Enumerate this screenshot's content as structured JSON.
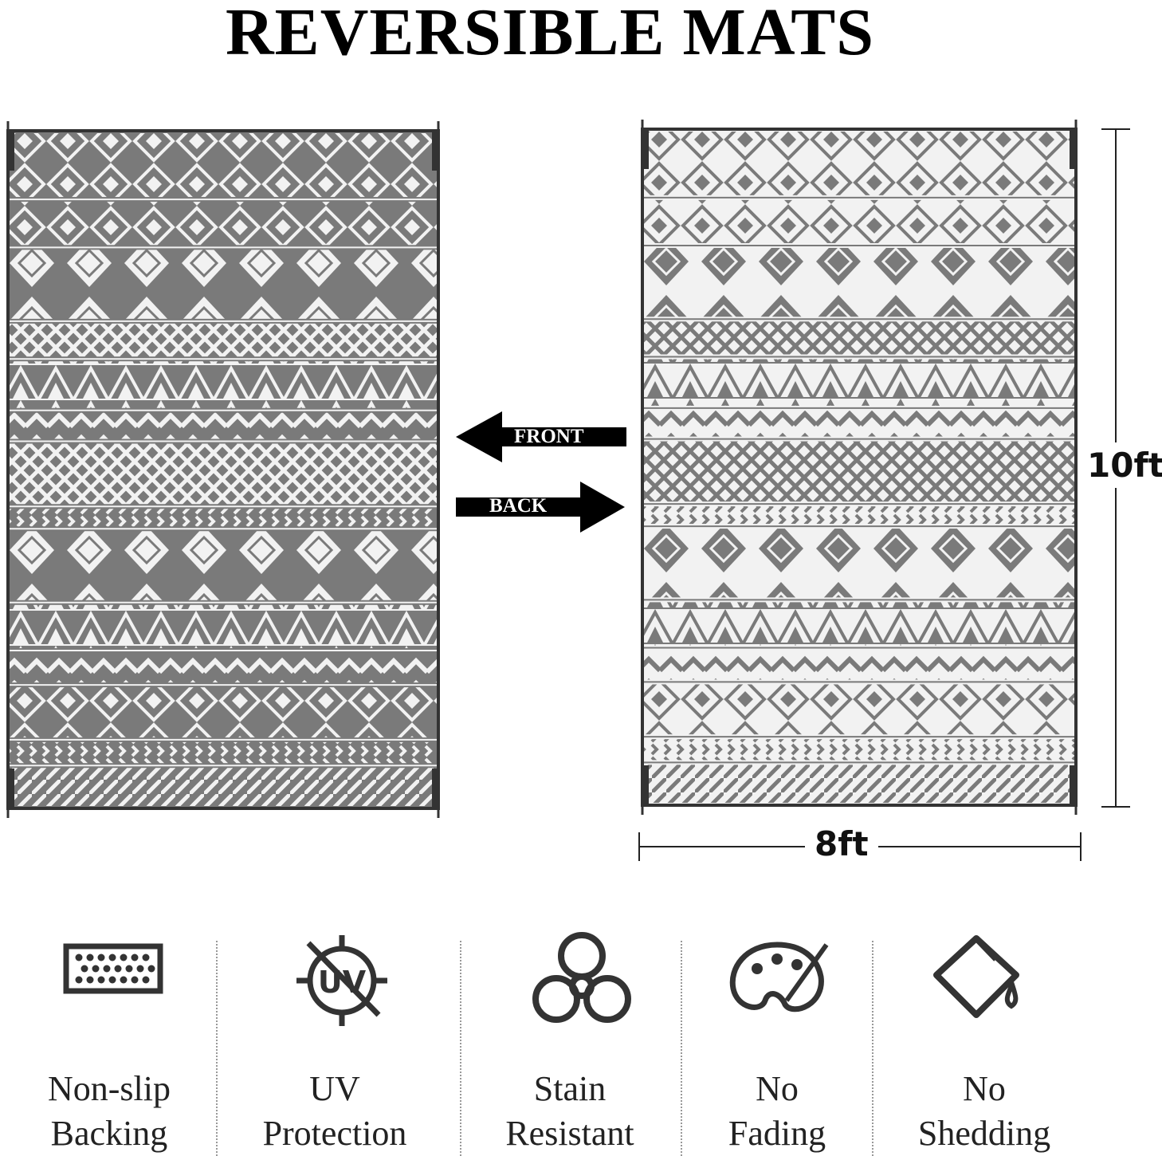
{
  "title": "REVERSIBLE MATS",
  "arrows": {
    "front": "FRONT",
    "back": "BACK"
  },
  "dimensions": {
    "height": "10ft",
    "width": "8ft"
  },
  "colors": {
    "mat_gray": "#7a7a7a",
    "mat_white": "#f2f2f2",
    "frame": "#333333"
  },
  "features": [
    {
      "icon": "non-slip-backing-icon",
      "line1": "Non-slip",
      "line2": "Backing"
    },
    {
      "icon": "uv-protection-icon",
      "line1": "UV",
      "line2": "Protection"
    },
    {
      "icon": "biohazard-icon",
      "line1": "Stain",
      "line2": "Resistant"
    },
    {
      "icon": "palette-icon",
      "line1": "No",
      "line2": "Fading"
    },
    {
      "icon": "paint-bucket-icon",
      "line1": "No",
      "line2": "Shedding"
    }
  ]
}
